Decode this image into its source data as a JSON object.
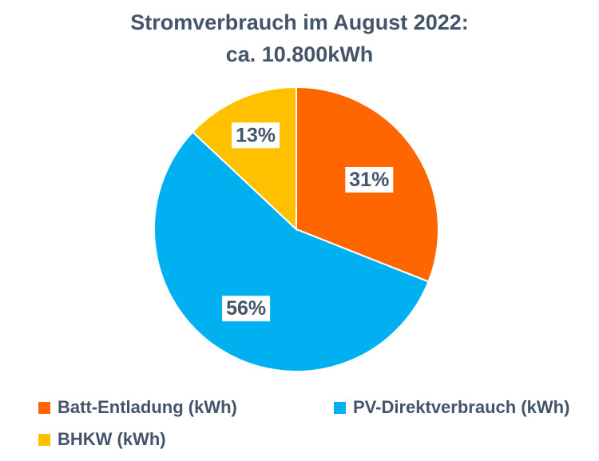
{
  "chart_data": {
    "type": "pie",
    "title_line1": "Stromverbrauch  im August 2022:",
    "title_line2": "ca. 10.800kWh",
    "slices": [
      {
        "name": "Batt-Entladung (kWh)",
        "value": 31,
        "label": "31%",
        "color": "#ff6600"
      },
      {
        "name": "PV-Direktverbrauch (kWh)",
        "value": 56,
        "label": "56%",
        "color": "#00b0f0"
      },
      {
        "name": "BHKW (kWh)",
        "value": 13,
        "label": "13%",
        "color": "#ffc000"
      }
    ],
    "start_angle_deg": 0,
    "direction": "clockwise",
    "legend_position": "bottom"
  }
}
